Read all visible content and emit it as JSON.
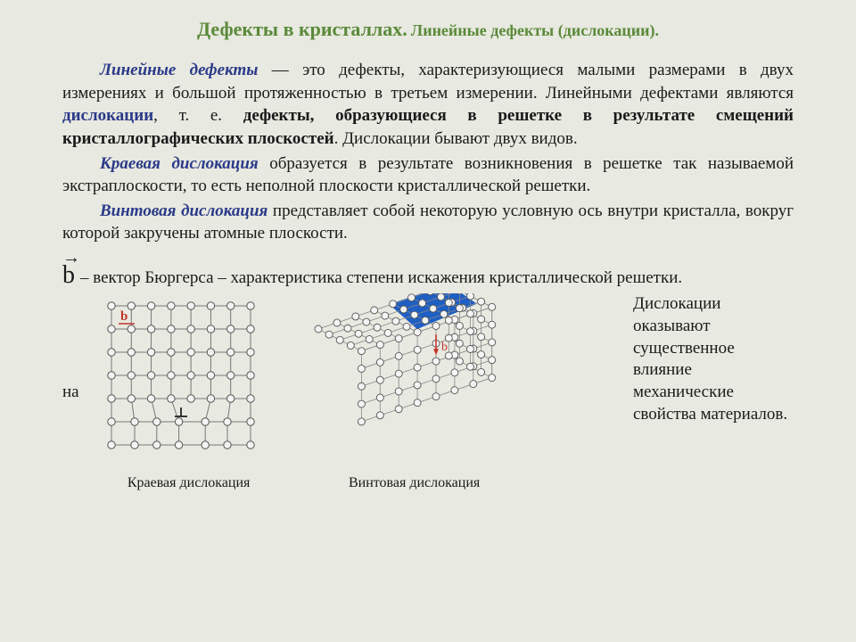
{
  "title": {
    "main": "Дефекты в кристаллах.",
    "sub": "Линейные дефекты (дислокации)."
  },
  "p1": {
    "term": "Линейные дефекты",
    "t1": " — это дефекты, характеризующиеся малыми размерами в двух измерениях и большой протяженностью в третьем измерении. Линейными дефектами являются ",
    "kw": "дислокации",
    "t2": ", т. е. ",
    "b1": "дефекты, образующиеся в решетке в результате смещений кристаллографических плоскостей",
    "t3": ". Дислокации бывают двух видов."
  },
  "p2": {
    "term": "Краевая дислокация",
    "t": " образуется в результате возникновения в решетке так называемой экстраплоскости, то есть неполной плоскости кристаллической решетки."
  },
  "p3": {
    "term": "Винтовая дислокация",
    "t": " представляет собой некоторую условную ось внутри кристалла, вокруг которой закручены атомные плоскости."
  },
  "vec": {
    "sym": "b",
    "t": " – вектор Бюргерса – характеристика степени искажения кристаллической решетки."
  },
  "na": "на",
  "side": "Дислокации оказывают существенное влияние             механические свойства материалов.",
  "fig1": {
    "caption": "Краевая дислокация",
    "b_label": "b",
    "cols": 7,
    "rows": 7,
    "cell": 26,
    "atom_r": 4.2,
    "atom_fill": "#f5f5f5",
    "atom_stroke": "#555",
    "grid_stroke": "#777",
    "b_color": "#c4342a",
    "displace_col": 3,
    "top_planes": 5
  },
  "fig2": {
    "caption": "Винтовая дислокация",
    "b_label": "b",
    "nx": 8,
    "ny": 5,
    "nz": 5,
    "cell": 22,
    "atom_r": 4,
    "atom_fill": "#f5f5f5",
    "atom_stroke": "#555",
    "grid_stroke": "#888",
    "step_fill": "#1e5fc4",
    "b_color": "#c4342a"
  },
  "colors": {
    "bg": "#e8e9e0",
    "title": "#5a8a3a",
    "term": "#2a3a8a",
    "text": "#1a1a1a"
  }
}
